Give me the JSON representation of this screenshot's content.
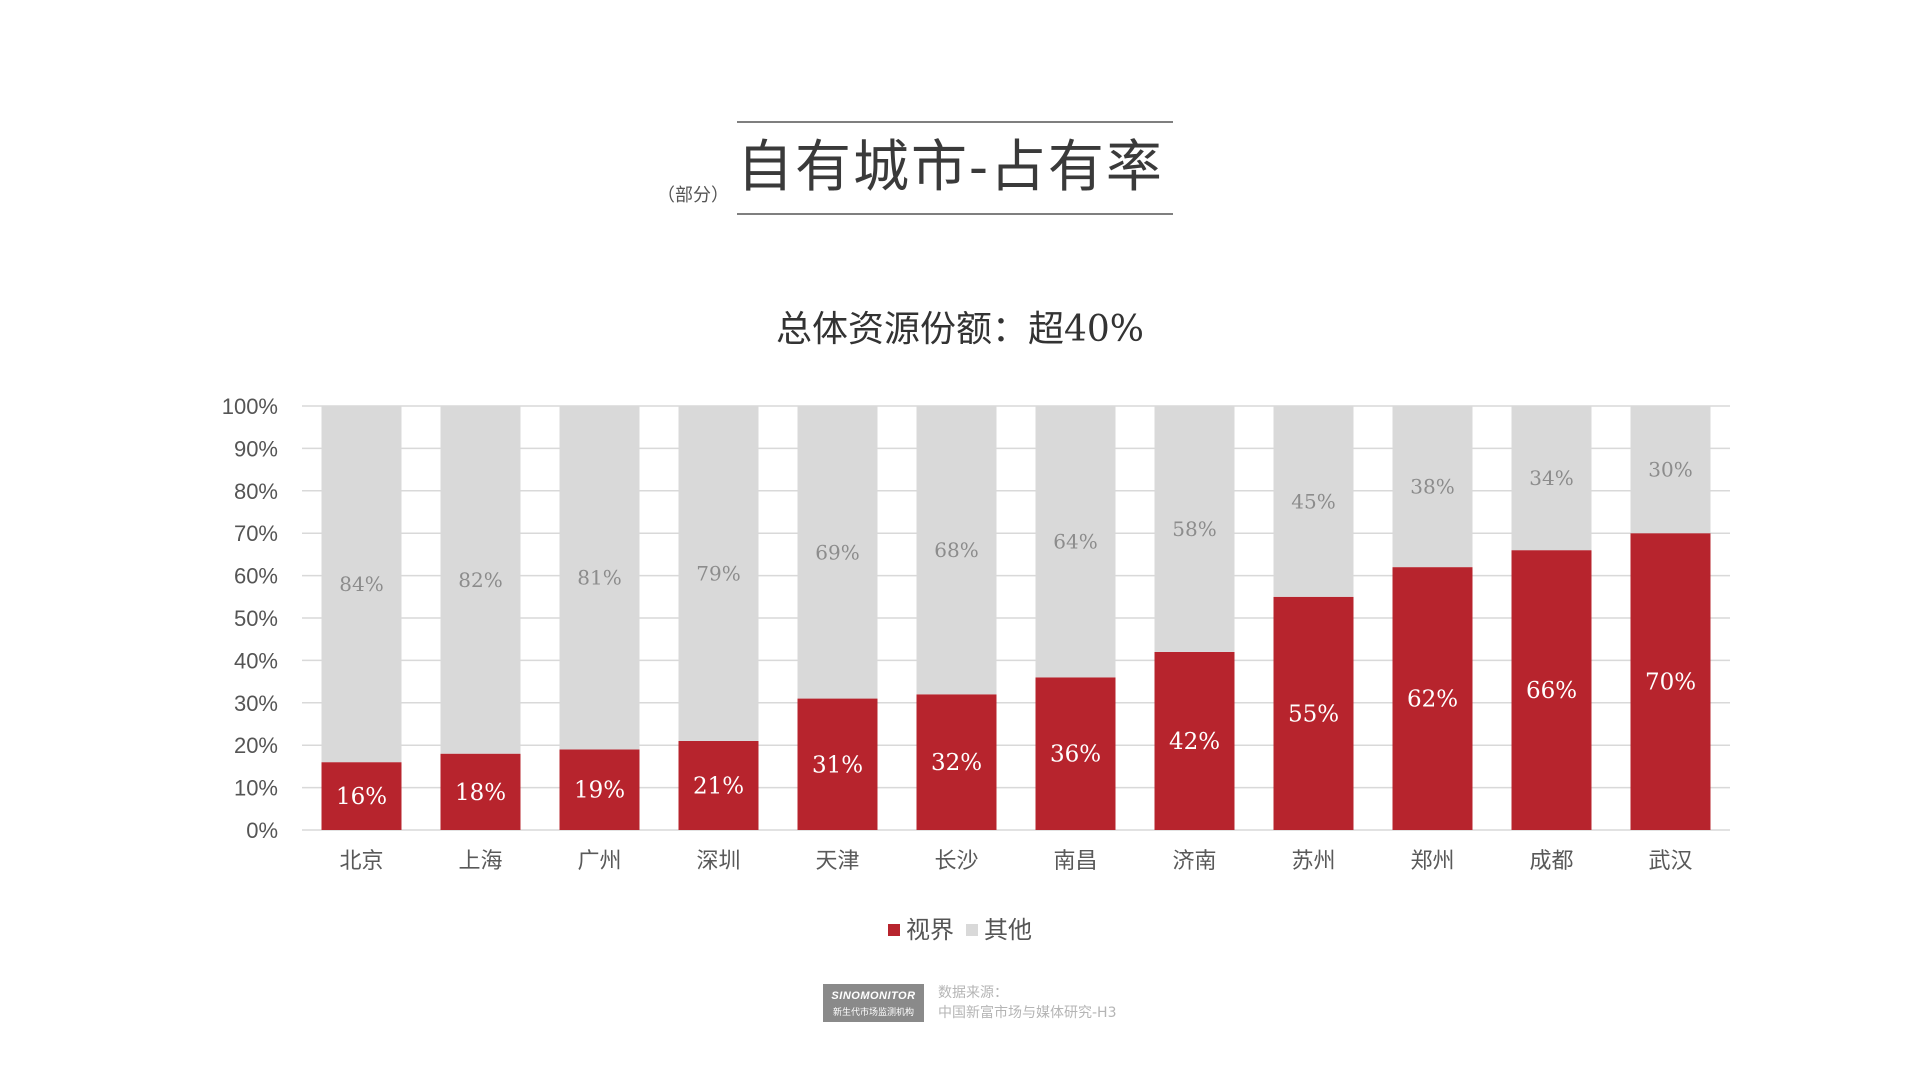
{
  "title": {
    "prefix": "（部分）",
    "main": "自有城市-占有率"
  },
  "subtitle": "总体资源份额：超40%",
  "colors": {
    "primary": "#B7242D",
    "secondary": "#D9D9D9",
    "grid": "#D9D9D9"
  },
  "chart_data": {
    "type": "bar",
    "stacked": true,
    "percent": true,
    "categories": [
      "北京",
      "上海",
      "广州",
      "深圳",
      "天津",
      "长沙",
      "南昌",
      "济南",
      "苏州",
      "郑州",
      "成都",
      "武汉"
    ],
    "series": [
      {
        "name": "视界",
        "color": "#B7242D",
        "values": [
          16,
          18,
          19,
          21,
          31,
          32,
          36,
          42,
          55,
          62,
          66,
          70
        ]
      },
      {
        "name": "其他",
        "color": "#D9D9D9",
        "values": [
          84,
          82,
          81,
          79,
          69,
          68,
          64,
          58,
          45,
          38,
          34,
          30
        ]
      }
    ],
    "data_labels": {
      "视界": [
        "16%",
        "18%",
        "19%",
        "21%",
        "31%",
        "32%",
        "36%",
        "42%",
        "55%",
        "62%",
        "66%",
        "70%"
      ],
      "其他": [
        "84%",
        "82%",
        "81%",
        "79%",
        "69%",
        "68%",
        "64%",
        "58%",
        "45%",
        "38%",
        "34%",
        "30%"
      ]
    },
    "yticks": [
      "0%",
      "10%",
      "20%",
      "30%",
      "40%",
      "50%",
      "60%",
      "70%",
      "80%",
      "90%",
      "100%"
    ],
    "ylim": [
      0,
      100
    ],
    "grid": true,
    "legend_position": "bottom-center"
  },
  "legend": [
    {
      "label": "视界",
      "color": "#B7242D"
    },
    {
      "label": "其他",
      "color": "#D9D9D9"
    }
  ],
  "footer": {
    "logo_top": "SINOMONITOR",
    "logo_bottom": "新生代市场监测机构",
    "source_label": "数据来源：",
    "source_text": "中国新富市场与媒体研究-H3"
  }
}
